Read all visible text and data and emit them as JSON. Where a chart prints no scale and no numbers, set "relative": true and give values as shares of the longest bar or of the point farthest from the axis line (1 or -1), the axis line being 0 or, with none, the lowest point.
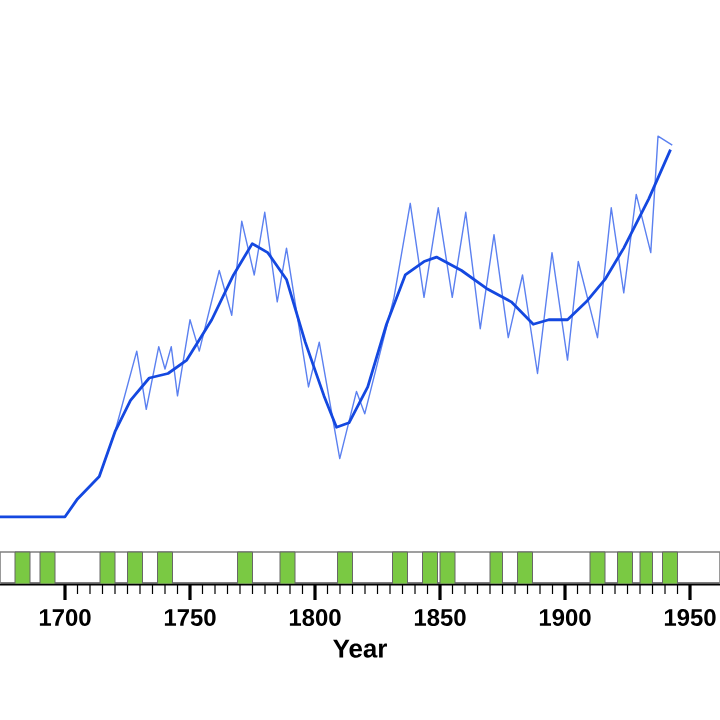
{
  "chart_data": {
    "type": "line",
    "relative": true,
    "xlim": [
      1674,
      1962
    ],
    "xlabel": "Year",
    "line_style": "solid",
    "xticks": [
      1700,
      1750,
      1800,
      1850,
      1900,
      1950
    ],
    "series": [
      {
        "color": "#5b80f0",
        "x": [
          1674,
          1700,
          1705,
          1713.7,
          1720,
          1728.7,
          1732.5,
          1737.5,
          1740,
          1742.5,
          1745,
          1750,
          1753.7,
          1761.7,
          1766.7,
          1770.7,
          1775.7,
          1779.9,
          1784.9,
          1788.6,
          1797.4,
          1801.7,
          1809.9,
          1816.6,
          1819.9,
          1831.6,
          1838.1,
          1843.6,
          1849.3,
          1854.9,
          1860.3,
          1866.1,
          1871.6,
          1877.3,
          1883,
          1889,
          1894.8,
          1901,
          1905.3,
          1913,
          1918.5,
          1923.5,
          1928.5,
          1934.3,
          1937.2,
          1942.9
        ],
        "values": [
          0.15,
          0.15,
          0.19,
          0.24,
          0.34,
          0.52,
          0.39,
          0.53,
          0.48,
          0.53,
          0.42,
          0.59,
          0.52,
          0.7,
          0.6,
          0.81,
          0.69,
          0.83,
          0.63,
          0.75,
          0.44,
          0.54,
          0.28,
          0.43,
          0.38,
          0.64,
          0.85,
          0.64,
          0.84,
          0.64,
          0.83,
          0.57,
          0.78,
          0.55,
          0.69,
          0.47,
          0.74,
          0.5,
          0.72,
          0.55,
          0.84,
          0.65,
          0.87,
          0.74,
          1.0,
          0.98
        ]
      },
      {
        "color": "#1448e0",
        "x": [
          1674,
          1700,
          1705,
          1713.7,
          1720,
          1726.2,
          1733.7,
          1741.2,
          1748.7,
          1758.7,
          1767.4,
          1774.9,
          1781.1,
          1788.6,
          1796.1,
          1803.6,
          1808.6,
          1813.6,
          1821.1,
          1828.6,
          1836.1,
          1843.6,
          1848.6,
          1858.6,
          1868.6,
          1878.5,
          1887.3,
          1893.5,
          1901,
          1908.5,
          1916,
          1923.5,
          1933.5,
          1942.2
        ],
        "values": [
          0.15,
          0.15,
          0.19,
          0.24,
          0.34,
          0.41,
          0.46,
          0.47,
          0.5,
          0.59,
          0.69,
          0.76,
          0.74,
          0.68,
          0.54,
          0.42,
          0.35,
          0.36,
          0.44,
          0.58,
          0.69,
          0.72,
          0.73,
          0.7,
          0.66,
          0.63,
          0.58,
          0.59,
          0.59,
          0.63,
          0.68,
          0.75,
          0.86,
          0.97
        ]
      }
    ],
    "bands": [
      {
        "axis": "x",
        "from": 1680,
        "to": 1686,
        "color": "#7ac943"
      },
      {
        "axis": "x",
        "from": 1690,
        "to": 1696,
        "color": "#7ac943"
      },
      {
        "axis": "x",
        "from": 1714,
        "to": 1720,
        "color": "#7ac943"
      },
      {
        "axis": "x",
        "from": 1725,
        "to": 1731,
        "color": "#7ac943"
      },
      {
        "axis": "x",
        "from": 1737,
        "to": 1743,
        "color": "#7ac943"
      },
      {
        "axis": "x",
        "from": 1769,
        "to": 1775,
        "color": "#7ac943"
      },
      {
        "axis": "x",
        "from": 1786,
        "to": 1792,
        "color": "#7ac943"
      },
      {
        "axis": "x",
        "from": 1809,
        "to": 1815,
        "color": "#7ac943"
      },
      {
        "axis": "x",
        "from": 1831,
        "to": 1837,
        "color": "#7ac943"
      },
      {
        "axis": "x",
        "from": 1843,
        "to": 1849,
        "color": "#7ac943"
      },
      {
        "axis": "x",
        "from": 1850,
        "to": 1856,
        "color": "#7ac943"
      },
      {
        "axis": "x",
        "from": 1870,
        "to": 1875,
        "color": "#7ac943"
      },
      {
        "axis": "x",
        "from": 1881,
        "to": 1887,
        "color": "#7ac943"
      },
      {
        "axis": "x",
        "from": 1910,
        "to": 1916,
        "color": "#7ac943"
      },
      {
        "axis": "x",
        "from": 1921,
        "to": 1927,
        "color": "#7ac943"
      },
      {
        "axis": "x",
        "from": 1930,
        "to": 1935,
        "color": "#7ac943"
      },
      {
        "axis": "x",
        "from": 1939,
        "to": 1945,
        "color": "#7ac943"
      }
    ]
  }
}
